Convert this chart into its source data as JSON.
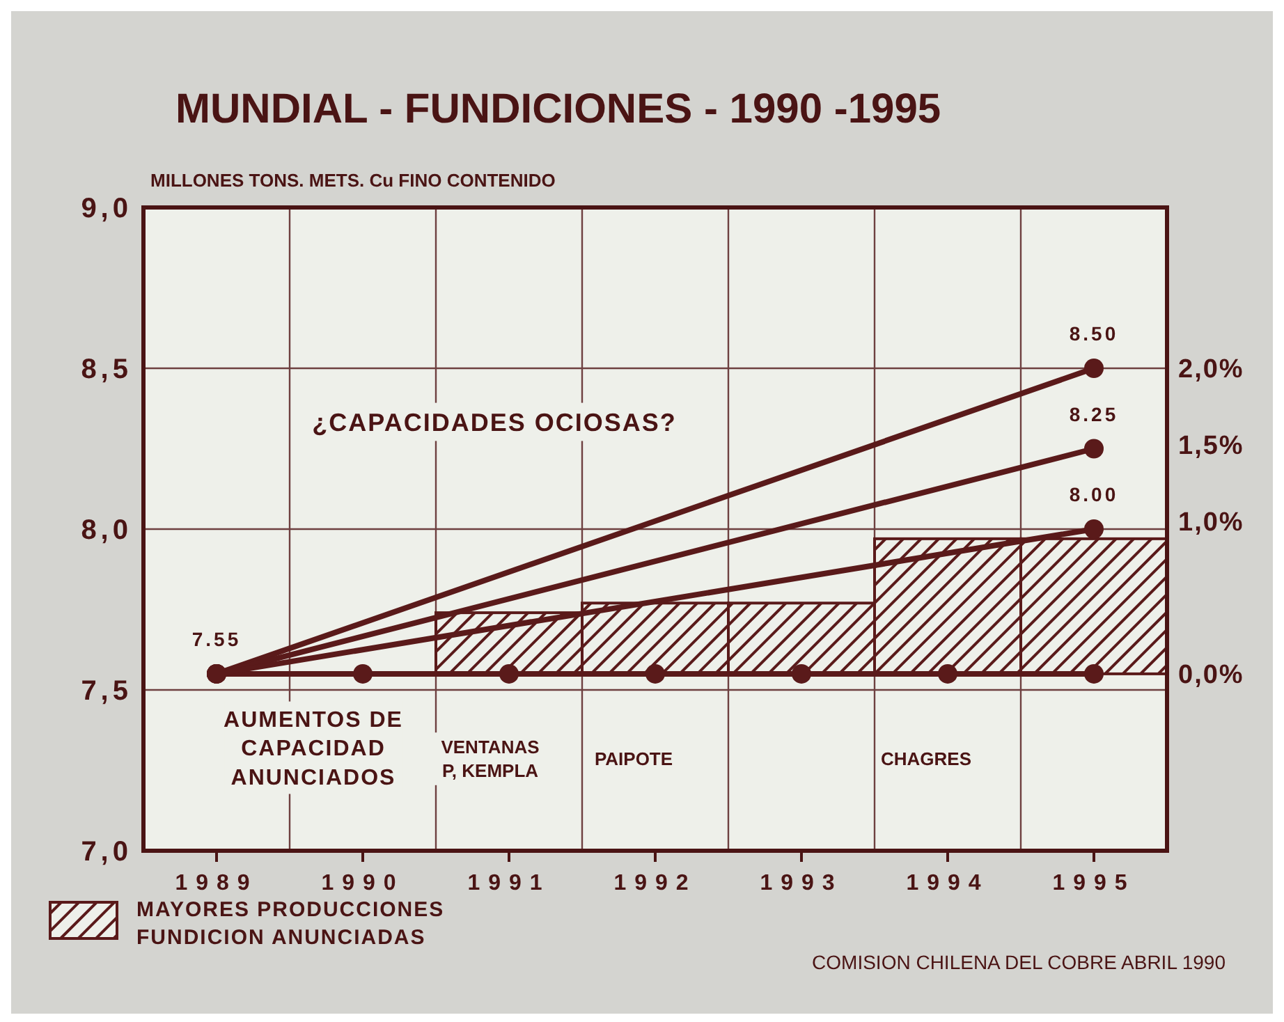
{
  "chart_data": {
    "type": "line",
    "title": "MUNDIAL - FUNDICIONES - 1990 -1995",
    "ylabel": "MILLONES TONS. METS. Cu FINO CONTENIDO",
    "xlim": [
      1988.5,
      1995.5
    ],
    "xticks": [
      1989,
      1990,
      1991,
      1992,
      1993,
      1994,
      1995,
      {
        "value": 1989.5,
        "label": null
      },
      {
        "value": 1990.5,
        "label": null
      },
      {
        "value": 1991.5,
        "label": null
      },
      {
        "value": 1992.5,
        "label": null
      },
      {
        "value": 1993.5,
        "label": null
      },
      {
        "value": 1994.5,
        "label": null
      }
    ],
    "ylim": [
      7,
      9
    ],
    "yticks": [
      {
        "value": 7,
        "label": "7,0"
      },
      {
        "value": 7.5,
        "label": "7,5"
      },
      {
        "value": 8,
        "label": "8,0"
      },
      {
        "value": 8.5,
        "label": "8,5"
      },
      {
        "value": 9,
        "label": "9,0"
      }
    ],
    "y2lim": [
      -1.16,
      3.05
    ],
    "y2ticks": [
      {
        "value": 0,
        "label": "0,0%"
      },
      {
        "value": 1,
        "label": "1,0%"
      },
      {
        "value": 1.5,
        "label": "1,5%"
      },
      {
        "value": 2,
        "label": "2,0%"
      }
    ],
    "grid": true,
    "legend": "bottom left",
    "marker": "circle",
    "series": [
      {
        "type": "bar",
        "name": "MAYORES PRODUCCIONES FUNDICION ANUNCIADAS",
        "color": "#5a1a1a",
        "x": [
          1991,
          1992,
          1993,
          1994,
          1995
        ],
        "values": [
          0.19,
          0.22,
          0.22,
          0.42,
          0.42
        ],
        "base": [
          7.55,
          7.55,
          7.55,
          7.55,
          7.55
        ]
      },
      {
        "color": "#5a1a1a",
        "x": [
          1989,
          1990,
          1991,
          1992,
          1993,
          1994,
          1995
        ],
        "values": [
          7.55,
          7.55,
          7.55,
          7.55,
          7.55,
          7.55,
          7.55
        ]
      },
      {
        "color": "#5a1a1a",
        "x": [
          1989,
          1995
        ],
        "values": [
          7.55,
          8.5
        ],
        "value_labels": [
          "7.55",
          "8.50"
        ]
      },
      {
        "color": "#5a1a1a",
        "x": [
          1989,
          1995
        ],
        "values": [
          7.55,
          8.25
        ],
        "value_labels": [
          null,
          "8.25"
        ]
      },
      {
        "color": "#5a1a1a",
        "x": [
          1989,
          1995
        ],
        "values": [
          7.55,
          8.0
        ],
        "value_labels": [
          null,
          "8.00"
        ]
      }
    ],
    "annotations": [
      "¿CAPACIDADES OCIOSAS?",
      "AUMENTOS DE CAPACIDAD ANUNCIADOS",
      "VENTANAS P, KEMPLA",
      "PAIPOTE",
      "CHAGRES",
      "COMISION CHILENA DEL COBRE ABRIL 1990"
    ]
  }
}
